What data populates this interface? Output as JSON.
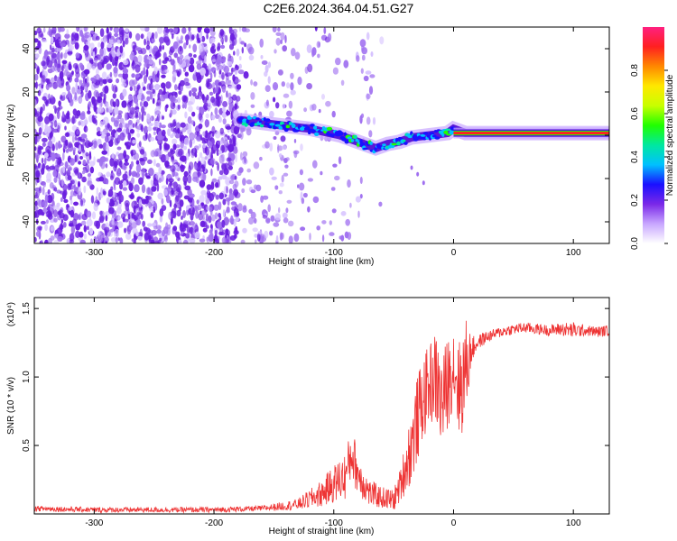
{
  "page": {
    "title": "C2E6.2024.364.04.51.G27"
  },
  "chart_data": [
    {
      "type": "heatmap",
      "xlabel": "Height of straight line (km)",
      "ylabel": "Frequency (Hz)",
      "xlim": [
        -350,
        130
      ],
      "ylim": [
        -50,
        50
      ],
      "xticks": [
        -300,
        -200,
        -100,
        0,
        100
      ],
      "yticks": [
        -40,
        -20,
        0,
        20,
        40
      ],
      "grid": false,
      "colorbar": {
        "label": "Normalized spectral amplitude",
        "range": [
          0,
          1
        ],
        "ticks": [
          0.0,
          0.2,
          0.4,
          0.6,
          0.8
        ],
        "stops": [
          "#ffffff",
          "#c8a6ff",
          "#7a28e8",
          "#1a10ff",
          "#00c0ff",
          "#00e8a0",
          "#20ff00",
          "#c8ff00",
          "#ffe800",
          "#ff8800",
          "#ff2020",
          "#ff2080"
        ]
      },
      "regions": [
        {
          "from": -350,
          "to": -178,
          "description": "noise",
          "density": 0.9
        },
        {
          "from": -178,
          "to": -140,
          "description": "sparse noise",
          "density": 0.25
        },
        {
          "from": -140,
          "to": -60,
          "description": "faint noise",
          "density": 0.1
        }
      ],
      "ridge": [
        {
          "x": -178,
          "y": 7
        },
        {
          "x": -150,
          "y": 5
        },
        {
          "x": -120,
          "y": 3
        },
        {
          "x": -95,
          "y": 0
        },
        {
          "x": -80,
          "y": -3
        },
        {
          "x": -65,
          "y": -6
        },
        {
          "x": -55,
          "y": -4
        },
        {
          "x": -45,
          "y": -3
        },
        {
          "x": -35,
          "y": -1
        },
        {
          "x": -20,
          "y": 0
        },
        {
          "x": -5,
          "y": 1
        },
        {
          "x": 0,
          "y": 3
        },
        {
          "x": 10,
          "y": 1
        },
        {
          "x": 130,
          "y": 1
        }
      ]
    },
    {
      "type": "line",
      "xlabel": "Height of straight line (km)",
      "ylabel": "SNR (10 * v/v)",
      "yscale_label": "(x10⁴)",
      "xlim": [
        -350,
        130
      ],
      "ylim": [
        0,
        1.58
      ],
      "xticks": [
        -300,
        -200,
        -100,
        0,
        100
      ],
      "yticks": [
        0.5,
        1.0,
        1.5
      ],
      "ytick_labels": [
        "0.5",
        "1.0",
        "1.5"
      ],
      "color": "#ee3333",
      "series": [
        {
          "x": [
            -350,
            -300,
            -250,
            -200,
            -160,
            -130,
            -110,
            -100,
            -90,
            -85,
            -80,
            -70,
            -60,
            -50,
            -45,
            -40,
            -35,
            -30,
            -25,
            -20,
            -15,
            -10,
            -5,
            0,
            5,
            10,
            15,
            20,
            25,
            30,
            40,
            50,
            60,
            70,
            80,
            90,
            100,
            110,
            120,
            130
          ],
          "y": [
            0.04,
            0.03,
            0.03,
            0.03,
            0.04,
            0.07,
            0.15,
            0.22,
            0.28,
            0.45,
            0.3,
            0.15,
            0.12,
            0.1,
            0.2,
            0.35,
            0.5,
            0.7,
            0.85,
            0.95,
            1.0,
            0.8,
            0.95,
            1.1,
            0.9,
            1.05,
            1.2,
            1.25,
            1.28,
            1.3,
            1.33,
            1.35,
            1.36,
            1.35,
            1.34,
            1.35,
            1.34,
            1.34,
            1.33,
            1.34
          ],
          "noise": [
            0.02,
            0.02,
            0.02,
            0.02,
            0.02,
            0.04,
            0.1,
            0.14,
            0.18,
            0.2,
            0.16,
            0.1,
            0.08,
            0.08,
            0.12,
            0.2,
            0.28,
            0.32,
            0.3,
            0.3,
            0.34,
            0.36,
            0.34,
            0.3,
            0.38,
            0.4,
            0.1,
            0.05,
            0.05,
            0.04,
            0.04,
            0.04,
            0.04,
            0.04,
            0.04,
            0.05,
            0.06,
            0.04,
            0.04,
            0.04
          ]
        }
      ]
    }
  ]
}
